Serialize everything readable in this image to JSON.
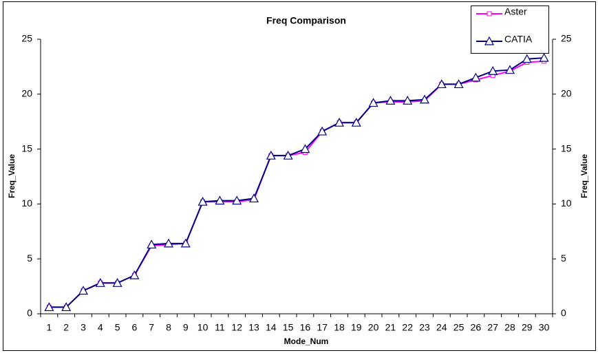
{
  "chart_data": {
    "type": "line",
    "title": "Freq Comparison",
    "xlabel": "Mode_Num",
    "ylabel": "Freq_Value",
    "y2label": "Freq_Value",
    "categories": [
      "1",
      "2",
      "3",
      "4",
      "5",
      "6",
      "7",
      "8",
      "9",
      "10",
      "11",
      "12",
      "13",
      "14",
      "15",
      "16",
      "17",
      "18",
      "19",
      "20",
      "21",
      "22",
      "23",
      "24",
      "25",
      "26",
      "27",
      "28",
      "29",
      "30"
    ],
    "series": [
      {
        "name": "Aster",
        "color": "#ff00ff",
        "marker": "square",
        "values": [
          0.6,
          0.6,
          2.1,
          2.8,
          2.8,
          3.5,
          6.2,
          6.3,
          6.4,
          10.2,
          10.2,
          10.2,
          10.4,
          14.4,
          14.4,
          14.7,
          16.6,
          17.4,
          17.4,
          19.2,
          19.3,
          19.3,
          19.4,
          20.9,
          20.9,
          21.3,
          21.7,
          22.1,
          22.9,
          23.0
        ]
      },
      {
        "name": "CATIA",
        "color": "#000080",
        "marker": "triangle",
        "values": [
          0.6,
          0.6,
          2.1,
          2.8,
          2.8,
          3.5,
          6.3,
          6.4,
          6.4,
          10.2,
          10.3,
          10.3,
          10.5,
          14.4,
          14.4,
          15.0,
          16.6,
          17.4,
          17.4,
          19.2,
          19.4,
          19.4,
          19.5,
          20.9,
          20.9,
          21.5,
          22.1,
          22.2,
          23.2,
          23.3
        ]
      }
    ],
    "ylim": [
      0,
      25
    ],
    "yticks": [
      0,
      5,
      10,
      15,
      20,
      25
    ],
    "y2lim": [
      0,
      25
    ],
    "y2ticks": [
      0,
      5,
      10,
      15,
      20,
      25
    ],
    "grid": false,
    "legend": "upper right"
  }
}
